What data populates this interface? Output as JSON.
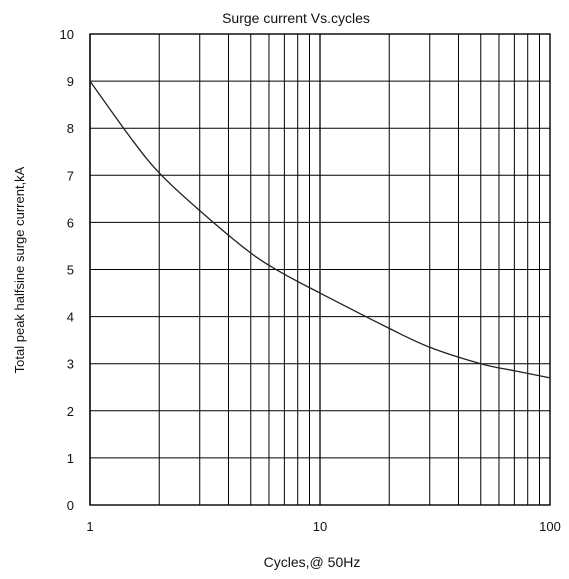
{
  "chart_data": {
    "type": "line",
    "title": "Surge current  Vs.cycles",
    "xlabel": "Cycles,@ 50Hz",
    "ylabel": "Total peak halfsine surge current,kA",
    "x_scale": "log",
    "xlim": [
      1,
      100
    ],
    "ylim": [
      0,
      10
    ],
    "grid": true,
    "x_ticks": [
      "1",
      "10",
      "100"
    ],
    "y_ticks": [
      "0",
      "1",
      "2",
      "3",
      "4",
      "5",
      "6",
      "7",
      "8",
      "9",
      "10"
    ],
    "series": [
      {
        "x": [
          1,
          1.5,
          2,
          3,
          5,
          7,
          10,
          20,
          30,
          50,
          70,
          100
        ],
        "y": [
          9.0,
          7.8,
          7.05,
          6.25,
          5.35,
          4.9,
          4.5,
          3.75,
          3.35,
          3.0,
          2.85,
          2.7
        ]
      }
    ]
  }
}
